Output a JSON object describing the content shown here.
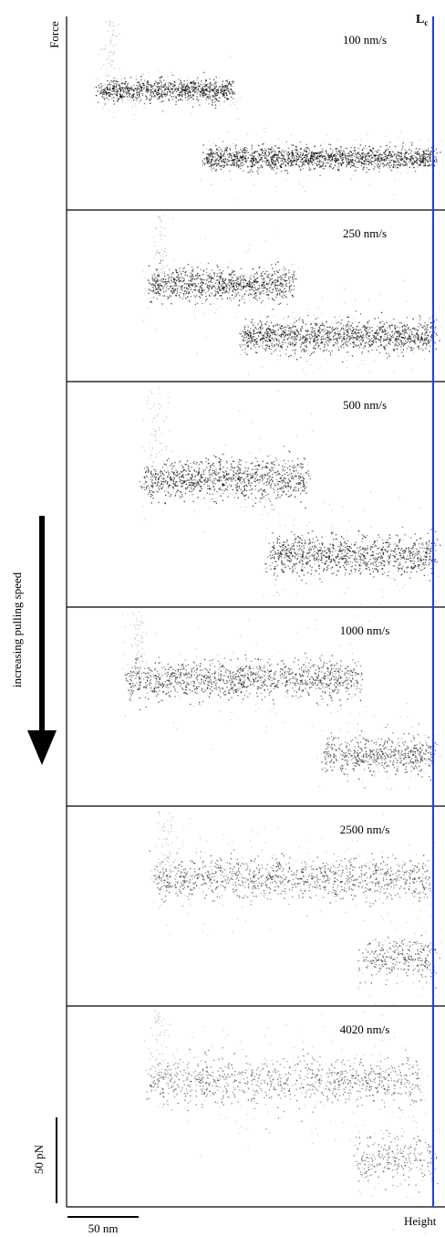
{
  "chart_data": {
    "type": "scatter",
    "y_axis_label": "Force",
    "x_axis_label": "Height",
    "contour_length_label": "L",
    "contour_length_subscript": "c",
    "contour_length_color": "#1a3cff",
    "arrow_label": "increasing pulling speed",
    "force_scale_bar_label": "50 pN",
    "height_scale_bar_label": "50 nm",
    "panels": [
      {
        "speed_label": "100 nm/s",
        "plateau_1": [
          110,
          255
        ],
        "plateau_2": [
          225,
          488
        ],
        "band_density": 1.0,
        "band_thickness": 0.085,
        "level_1": 0.38,
        "level_2": 0.73
      },
      {
        "speed_label": "250 nm/s",
        "plateau_1": [
          165,
          320
        ],
        "plateau_2": [
          265,
          488
        ],
        "band_density": 0.95,
        "band_thickness": 0.14,
        "level_1": 0.43,
        "level_2": 0.73
      },
      {
        "speed_label": "500 nm/s",
        "plateau_1": [
          160,
          335
        ],
        "plateau_2": [
          295,
          488
        ],
        "band_density": 0.9,
        "band_thickness": 0.13,
        "level_1": 0.43,
        "level_2": 0.77
      },
      {
        "speed_label": "1000 nm/s",
        "plateau_1": [
          140,
          395
        ],
        "plateau_2": [
          355,
          488
        ],
        "band_density": 0.75,
        "band_thickness": 0.14,
        "level_1": 0.36,
        "level_2": 0.74
      },
      {
        "speed_label": "2500 nm/s",
        "plateau_1": [
          170,
          470
        ],
        "plateau_2": [
          395,
          488
        ],
        "band_density": 0.6,
        "band_thickness": 0.15,
        "level_1": 0.36,
        "level_2": 0.76
      },
      {
        "speed_label": "4020 nm/s",
        "plateau_1": [
          160,
          462
        ],
        "plateau_2": [
          390,
          488
        ],
        "band_density": 0.5,
        "band_thickness": 0.17,
        "level_1": 0.37,
        "level_2": 0.76
      }
    ]
  }
}
